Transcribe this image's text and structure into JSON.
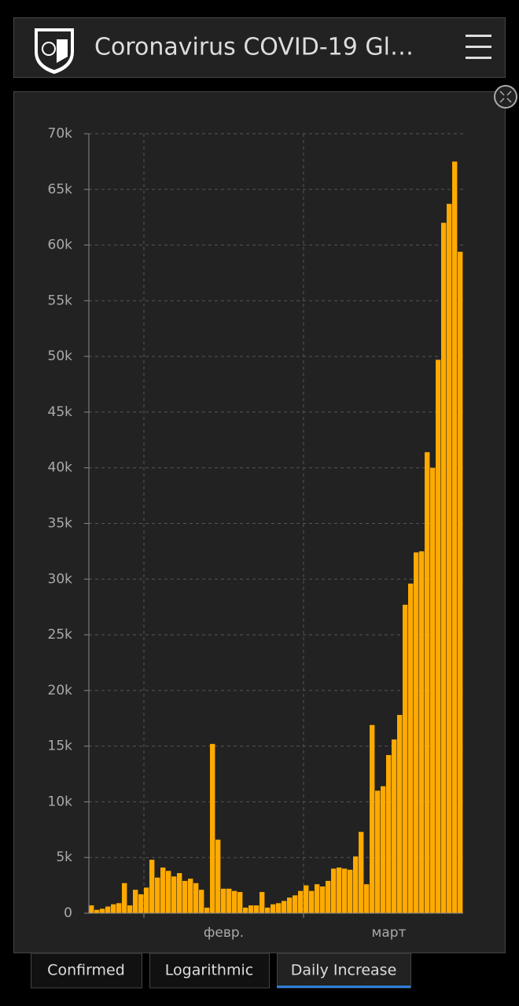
{
  "header": {
    "title": "Coronavirus COVID-19 Gl…"
  },
  "tabs": [
    "Confirmed",
    "Logarithmic",
    "Daily Increase"
  ],
  "chart_data": {
    "type": "bar",
    "color": "#ffaa00",
    "grid": true,
    "categories": [
      null,
      null,
      null,
      null,
      null,
      null,
      null,
      null,
      null,
      null,
      null,
      null,
      null,
      null,
      null,
      null,
      null,
      null,
      null,
      null,
      null,
      null,
      null,
      null,
      "февр.",
      null,
      null,
      null,
      null,
      null,
      null,
      null,
      null,
      null,
      null,
      null,
      null,
      null,
      null,
      null,
      null,
      null,
      null,
      null,
      null,
      null,
      null,
      null,
      null,
      null,
      null,
      null,
      null,
      null,
      "март",
      null,
      null,
      null,
      null,
      null,
      null,
      null,
      null,
      null,
      null,
      null,
      null,
      null
    ],
    "values": [
      700,
      300,
      400,
      600,
      800,
      900,
      2700,
      700,
      2100,
      1700,
      2300,
      4800,
      3200,
      4100,
      3800,
      3300,
      3600,
      2900,
      3100,
      2700,
      2100,
      500,
      15200,
      6600,
      2200,
      2200,
      2000,
      1900,
      500,
      700,
      700,
      1900,
      500,
      800,
      900,
      1100,
      1400,
      1600,
      2000,
      2500,
      2000,
      2600,
      2400,
      2900,
      4000,
      4100,
      4000,
      3900,
      5100,
      7300,
      2600,
      16900,
      11000,
      11400,
      14200,
      15600,
      17800,
      27700,
      29600,
      32400,
      32500,
      41400,
      40000,
      49700,
      62000,
      63700,
      67500,
      59400
    ],
    "ylim": [
      0,
      70000
    ],
    "yticks": [
      0,
      {
        "value": 5000,
        "label": "5k"
      },
      {
        "value": 10000,
        "label": "10k"
      },
      {
        "value": 15000,
        "label": "15k"
      },
      {
        "value": 20000,
        "label": "20k"
      },
      {
        "value": 25000,
        "label": "25k"
      },
      {
        "value": 30000,
        "label": "30k"
      },
      {
        "value": 35000,
        "label": "35k"
      },
      {
        "value": 40000,
        "label": "40k"
      },
      {
        "value": 45000,
        "label": "45k"
      },
      {
        "value": 50000,
        "label": "50k"
      },
      {
        "value": 55000,
        "label": "55k"
      },
      {
        "value": 60000,
        "label": "60k"
      },
      {
        "value": 65000,
        "label": "65k"
      },
      {
        "value": 70000,
        "label": "70k"
      }
    ]
  }
}
